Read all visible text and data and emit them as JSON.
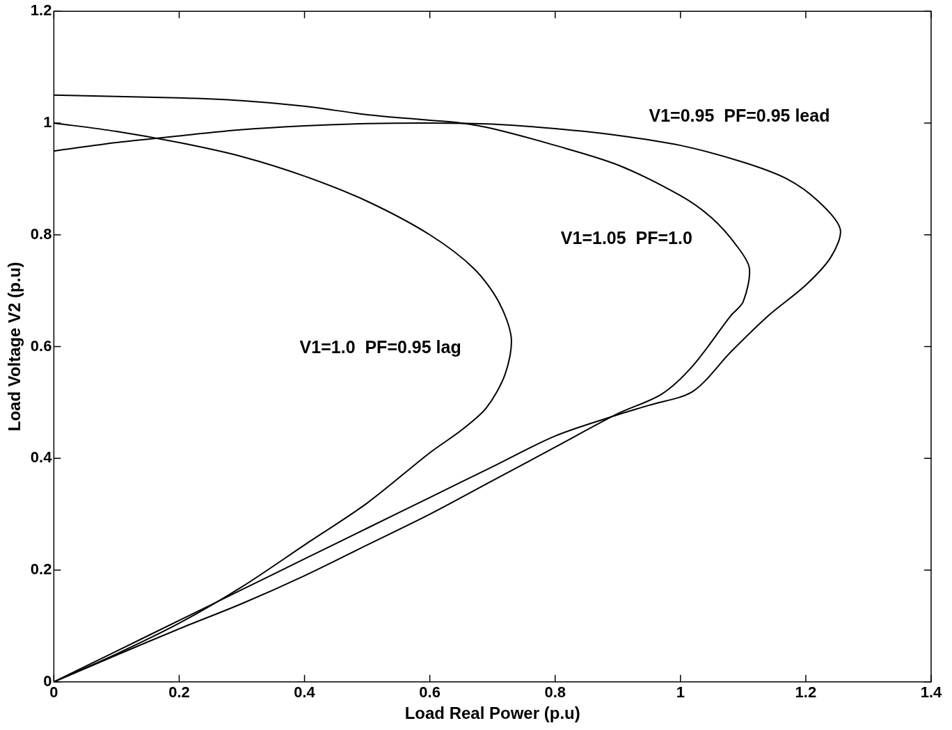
{
  "chart_data": {
    "type": "line",
    "xlabel": "Load Real Power (p.u)",
    "ylabel": "Load Voltage V2 (p.u)",
    "xlim": [
      0,
      1.4
    ],
    "xticks": [
      0,
      0.2,
      0.4,
      0.6,
      0.8,
      1,
      1.2,
      1.4
    ],
    "ylim": [
      0,
      1.2
    ],
    "yticks": [
      0,
      0.2,
      0.4,
      0.6,
      0.8,
      1,
      1.2
    ],
    "marker": "none",
    "line_style": "solid",
    "legend": false,
    "grid": false,
    "series": [
      {
        "name": "V1=1.0  PF=0.95 lag",
        "color": "#000000",
        "x": [
          0,
          0.1,
          0.2,
          0.3,
          0.4,
          0.5,
          0.6,
          0.67,
          0.71,
          0.73,
          0.72,
          0.69,
          0.65,
          0.6,
          0.5,
          0.4,
          0.3,
          0.2,
          0.1,
          0
        ],
        "values": [
          1.0,
          0.985,
          0.965,
          0.94,
          0.905,
          0.86,
          0.8,
          0.74,
          0.68,
          0.615,
          0.55,
          0.49,
          0.45,
          0.41,
          0.32,
          0.245,
          0.17,
          0.105,
          0.05,
          0
        ]
      },
      {
        "name": "V1=1.05  PF=1.0",
        "color": "#000000",
        "x": [
          0,
          0.2,
          0.3,
          0.4,
          0.5,
          0.6,
          0.65,
          0.7,
          0.8,
          0.9,
          1.0,
          1.05,
          1.09,
          1.11,
          1.1,
          1.08,
          1.02,
          0.97,
          0.9,
          0.8,
          0.7,
          0.6,
          0.5,
          0.4,
          0.3,
          0.2,
          0.1,
          0
        ],
        "values": [
          1.05,
          1.045,
          1.04,
          1.03,
          1.015,
          1.005,
          1.0,
          0.99,
          0.96,
          0.925,
          0.87,
          0.83,
          0.78,
          0.74,
          0.68,
          0.655,
          0.566,
          0.515,
          0.48,
          0.42,
          0.36,
          0.3,
          0.245,
          0.19,
          0.14,
          0.095,
          0.048,
          0
        ]
      },
      {
        "name": "V1=0.95  PF=0.95 lead",
        "color": "#000000",
        "x": [
          0,
          0.1,
          0.2,
          0.3,
          0.4,
          0.5,
          0.6,
          0.7,
          0.8,
          0.9,
          1.0,
          1.1,
          1.17,
          1.22,
          1.255,
          1.24,
          1.2,
          1.14,
          1.08,
          1.02,
          0.95,
          0.9,
          0.8,
          0.7,
          0.6,
          0.5,
          0.4,
          0.3,
          0.2,
          0.1,
          0
        ],
        "values": [
          0.95,
          0.965,
          0.977,
          0.988,
          0.995,
          0.999,
          1.0,
          0.998,
          0.99,
          0.978,
          0.96,
          0.93,
          0.9,
          0.86,
          0.81,
          0.76,
          0.71,
          0.655,
          0.59,
          0.52,
          0.495,
          0.478,
          0.44,
          0.385,
          0.33,
          0.275,
          0.22,
          0.165,
          0.11,
          0.055,
          0
        ]
      }
    ]
  }
}
